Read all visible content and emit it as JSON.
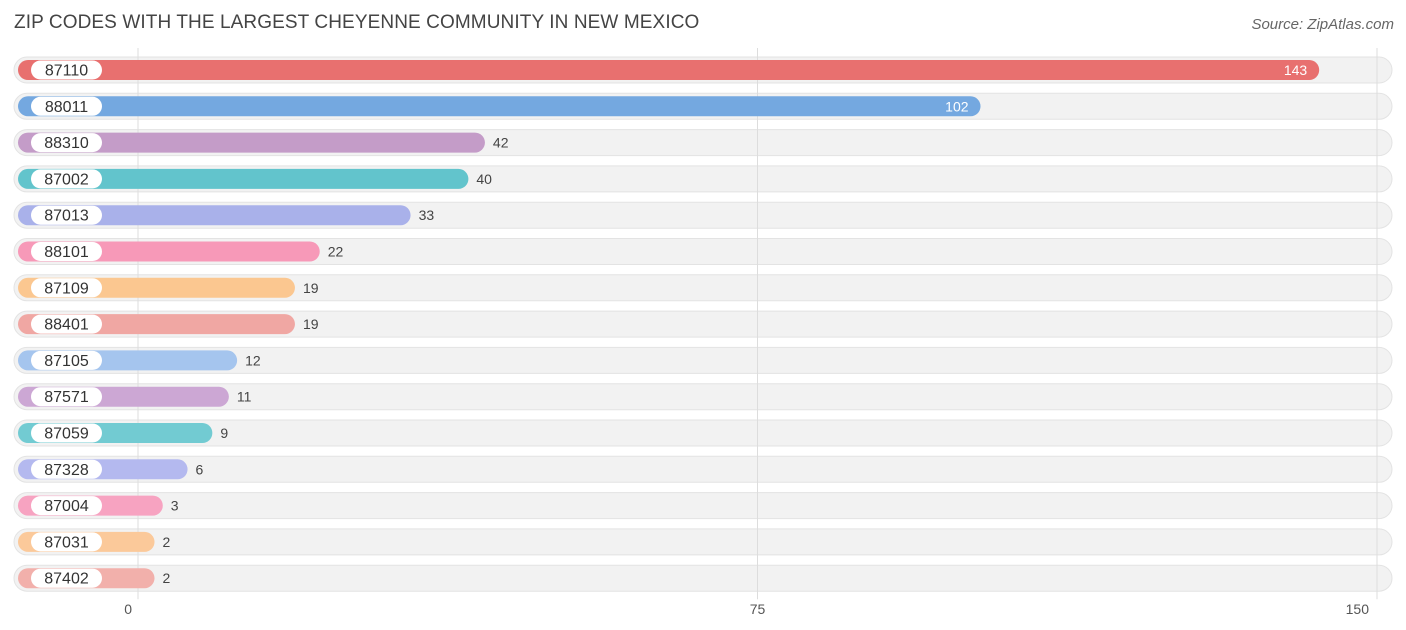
{
  "title": "ZIP CODES WITH THE LARGEST CHEYENNE COMMUNITY IN NEW MEXICO",
  "source": "Source: ZipAtlas.com",
  "chart_data": {
    "type": "bar",
    "orientation": "horizontal",
    "title": "ZIP CODES WITH THE LARGEST CHEYENNE COMMUNITY IN NEW MEXICO",
    "categories": [
      "87110",
      "88011",
      "88310",
      "87002",
      "87013",
      "88101",
      "87109",
      "88401",
      "87105",
      "87571",
      "87059",
      "87328",
      "87004",
      "87031",
      "87402"
    ],
    "values": [
      143,
      102,
      42,
      40,
      33,
      22,
      19,
      19,
      12,
      11,
      9,
      6,
      3,
      2,
      2
    ],
    "colors": [
      "#e8706f",
      "#74a8e0",
      "#c49cc8",
      "#62c4cc",
      "#a9b1ea",
      "#f799b8",
      "#fbc790",
      "#f0a7a3",
      "#a5c5ee",
      "#cca7d4",
      "#72cbd2",
      "#b4b9ef",
      "#f7a3c1",
      "#fbc99a",
      "#f2b0ab"
    ],
    "xlim": [
      0,
      150
    ],
    "xticks": [
      0,
      75,
      150
    ],
    "xlabel": "",
    "ylabel": "",
    "grid": true
  }
}
